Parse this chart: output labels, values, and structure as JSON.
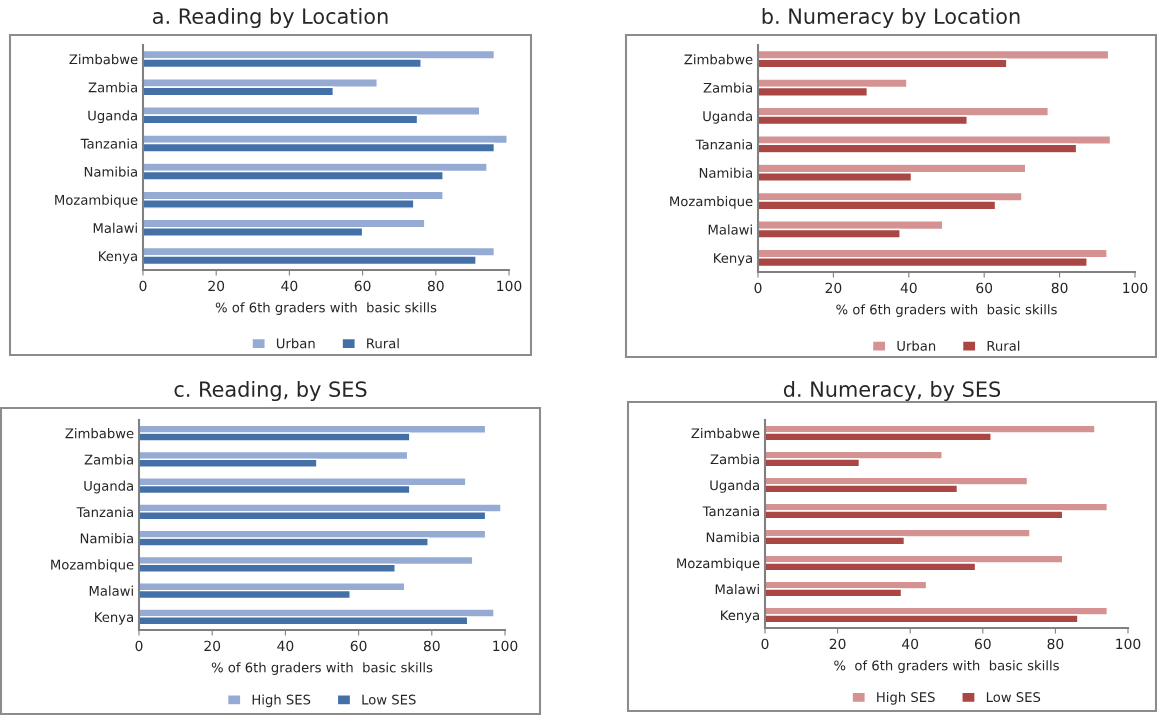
{
  "chart_data": [
    {
      "type": "bar",
      "orientation": "horizontal",
      "title": "a. Reading by Location",
      "xlabel": "% of 6th graders with  basic skills",
      "categories": [
        "Zimbabwe",
        "Zambia",
        "Uganda",
        "Tanzania",
        "Namibia",
        "Mozambique",
        "Malawi",
        "Kenya"
      ],
      "series": [
        {
          "name": "Urban",
          "color": "#95abd4",
          "values": [
            96,
            64,
            92,
            99.5,
            94,
            82,
            77,
            96
          ]
        },
        {
          "name": "Rural",
          "color": "#4470a8",
          "values": [
            76,
            52,
            75,
            96,
            82,
            74,
            60,
            91
          ]
        }
      ],
      "xlim": [
        0,
        100
      ],
      "xticks": [
        0,
        20,
        40,
        60,
        80,
        100
      ],
      "grid": false,
      "legend": "bottom"
    },
    {
      "type": "bar",
      "orientation": "horizontal",
      "title": "b. Numeracy by Location",
      "xlabel": "% of 6th graders with  basic skills",
      "categories": [
        "Zimbabwe",
        "Zambia",
        "Uganda",
        "Tanzania",
        "Namibia",
        "Mozambique",
        "Malawi",
        "Kenya"
      ],
      "series": [
        {
          "name": "Urban",
          "color": "#d49292",
          "values": [
            93,
            39.5,
            77,
            93.5,
            71,
            70,
            49,
            92.6
          ]
        },
        {
          "name": "Rural",
          "color": "#aa4644",
          "values": [
            66,
            29,
            55.5,
            84.5,
            40.7,
            63,
            37.7,
            87.3
          ]
        }
      ],
      "xlim": [
        0,
        100
      ],
      "xticks": [
        0,
        20,
        40,
        60,
        80,
        100
      ],
      "grid": false,
      "legend": "bottom"
    },
    {
      "type": "bar",
      "orientation": "horizontal",
      "title": "c. Reading, by SES",
      "xlabel": "% of 6th graders with  basic skills",
      "categories": [
        "Zimbabwe",
        "Zambia",
        "Uganda",
        "Tanzania",
        "Namibia",
        "Mozambique",
        "Malawi",
        "Kenya"
      ],
      "series": [
        {
          "name": "High SES",
          "color": "#95abd4",
          "values": [
            94.7,
            73.4,
            89.3,
            98.9,
            94.7,
            91.2,
            72.6,
            97
          ]
        },
        {
          "name": "Low SES",
          "color": "#4470a8",
          "values": [
            74,
            48.6,
            74,
            94.7,
            79,
            70,
            57.7,
            89.8
          ]
        }
      ],
      "xlim": [
        0,
        100
      ],
      "xticks": [
        0,
        20,
        40,
        60,
        80,
        100
      ],
      "grid": false,
      "legend": "bottom"
    },
    {
      "type": "bar",
      "orientation": "horizontal",
      "title": "d. Numeracy, by SES",
      "xlabel": "%  of 6th graders with  basic skills",
      "categories": [
        "Zimbabwe",
        "Zambia",
        "Uganda",
        "Tanzania",
        "Namibia",
        "Mozambique",
        "Malawi",
        "Kenya"
      ],
      "series": [
        {
          "name": "High SES",
          "color": "#d49292",
          "values": [
            90.9,
            48.8,
            72.3,
            94.3,
            73,
            82,
            44.5,
            94.3
          ]
        },
        {
          "name": "Low SES",
          "color": "#aa4644",
          "values": [
            62.3,
            26,
            53,
            82,
            38.4,
            58,
            37.6,
            86.2
          ]
        }
      ],
      "xlim": [
        0,
        100
      ],
      "xticks": [
        0,
        20,
        40,
        60,
        80,
        100
      ],
      "grid": false,
      "legend": "bottom"
    }
  ]
}
